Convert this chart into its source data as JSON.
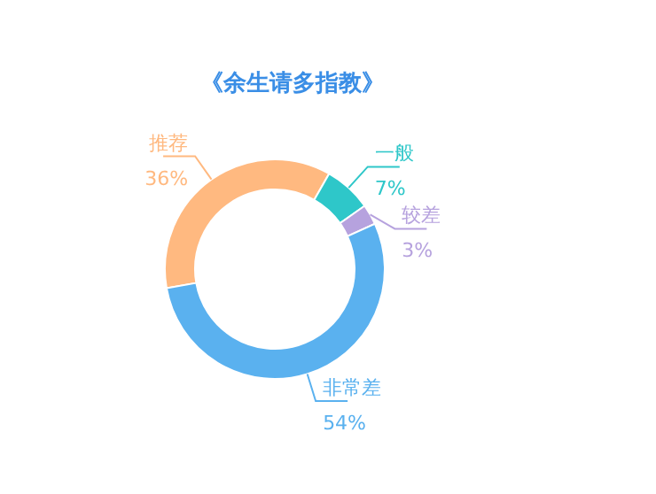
{
  "chart_data": {
    "type": "donut",
    "title": "《余生请多指教》",
    "categories": [
      "推荐",
      "一般",
      "较差",
      "非常差"
    ],
    "values": [
      36,
      7,
      3,
      54
    ],
    "colors": [
      "#ffb980",
      "#2ec7c9",
      "#b6a2de",
      "#5ab1ef"
    ],
    "value_labels": [
      "36%",
      "7%",
      "3%",
      "54%"
    ]
  }
}
